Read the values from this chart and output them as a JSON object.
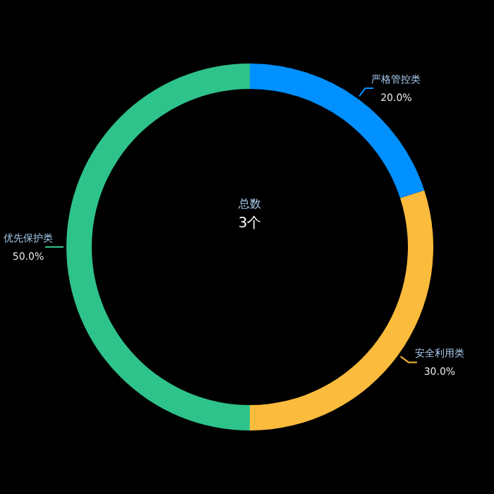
{
  "chart_data": {
    "type": "donut",
    "categories": [
      "严格管控类",
      "安全利用类",
      "优先保护类"
    ],
    "values": [
      20,
      30,
      50
    ],
    "colors": [
      "#0090ff",
      "#fbbb3c",
      "#2ec38b"
    ],
    "value_labels": [
      "20.0%",
      "30.0%",
      "50.0%"
    ],
    "annotations": [
      "总数",
      "3个"
    ]
  }
}
